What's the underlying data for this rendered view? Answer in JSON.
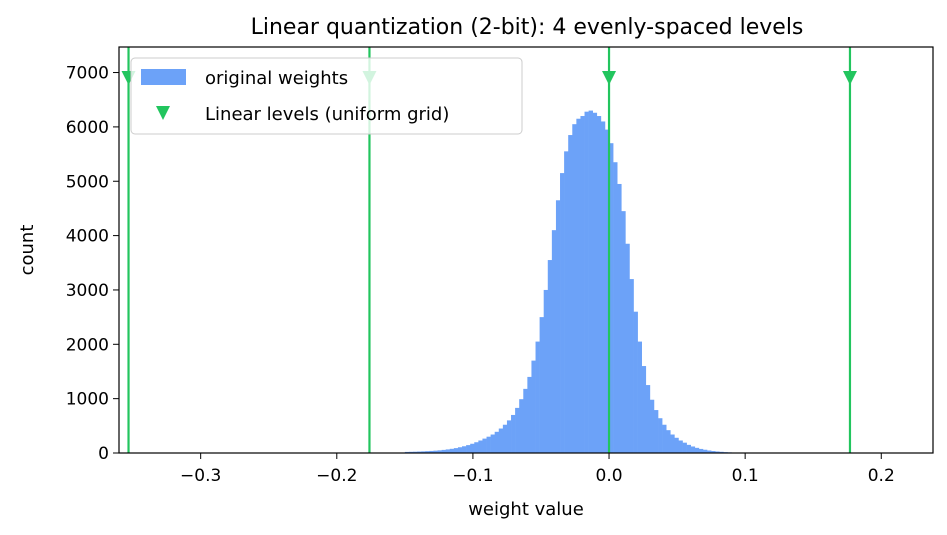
{
  "chart_data": {
    "type": "bar",
    "title": "Linear quantization (2-bit): 4 evenly-spaced levels",
    "xlabel": "weight value",
    "ylabel": "count",
    "xlim": [
      -0.36,
      0.238
    ],
    "ylim": [
      0,
      7470
    ],
    "xticks": [
      -0.3,
      -0.2,
      -0.1,
      0.0,
      0.1,
      0.2
    ],
    "xtick_labels": [
      "−0.3",
      "−0.2",
      "−0.1",
      "0.0",
      "0.1",
      "0.2"
    ],
    "yticks": [
      0,
      1000,
      2000,
      3000,
      4000,
      5000,
      6000,
      7000
    ],
    "ytick_labels": [
      "0",
      "1000",
      "2000",
      "3000",
      "4000",
      "5000",
      "6000",
      "7000"
    ],
    "grid": false,
    "legend_position": "top-left",
    "histogram": {
      "name": "original weights",
      "color": "#6ca2f8",
      "bin_width": 0.003,
      "bin_start": -0.15,
      "counts": [
        20,
        22,
        24,
        27,
        30,
        34,
        38,
        43,
        49,
        57,
        66,
        77,
        90,
        106,
        124,
        145,
        170,
        198,
        230,
        265,
        300,
        340,
        390,
        450,
        520,
        600,
        700,
        830,
        990,
        1180,
        1400,
        1700,
        2050,
        2500,
        3000,
        3550,
        4100,
        4650,
        5150,
        5550,
        5850,
        6050,
        6150,
        6200,
        6280,
        6300,
        6260,
        6200,
        6100,
        5950,
        5700,
        5350,
        4950,
        4450,
        3850,
        3200,
        2600,
        2050,
        1600,
        1250,
        980,
        790,
        640,
        520,
        420,
        340,
        280,
        230,
        190,
        150,
        120,
        95,
        75,
        60,
        46,
        36,
        28,
        22,
        16,
        12,
        9,
        6,
        4
      ]
    },
    "levels": {
      "name": "Linear levels (uniform grid)",
      "color": "#22c55e",
      "values": [
        -0.353,
        -0.176,
        0.0,
        0.177
      ],
      "marker_y": 6900
    }
  }
}
